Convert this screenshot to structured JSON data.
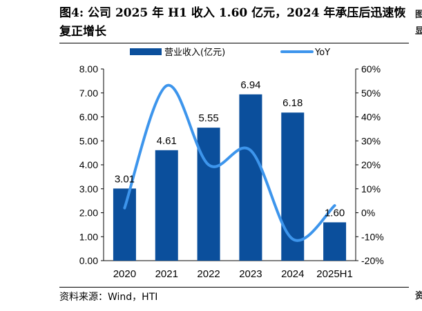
{
  "header": {
    "title": "图4: 公司 2025 年 H1 收入 1.60 亿元，2024 年承压后迅速恢复正增长"
  },
  "footer": {
    "source": "资料来源：Wind，HTI"
  },
  "side_fragments": [
    "图",
    "显",
    "资"
  ],
  "chart_data": {
    "type": "bar",
    "title": "图4: 公司 2025 年 H1 收入 1.60 亿元，2024 年承压后迅速恢复正增长",
    "categories": [
      "2020",
      "2021",
      "2022",
      "2023",
      "2024",
      "2025H1"
    ],
    "series": [
      {
        "name": "营业收入(亿元)",
        "type": "bar",
        "axis": "left",
        "values": [
          3.01,
          4.61,
          5.55,
          6.94,
          6.18,
          1.6
        ],
        "labels": [
          "3.01",
          "4.61",
          "5.55",
          "6.94",
          "6.18",
          "1.60"
        ],
        "color": "#0b4f9c"
      },
      {
        "name": "YoY",
        "type": "line",
        "axis": "right",
        "values": [
          0.02,
          0.53,
          0.2,
          0.26,
          -0.11,
          0.03
        ],
        "color": "#3d95ec"
      }
    ],
    "y_left": {
      "min": 0,
      "max": 8,
      "ticks": [
        "0.00",
        "1.00",
        "2.00",
        "3.00",
        "4.00",
        "5.00",
        "6.00",
        "7.00",
        "8.00"
      ]
    },
    "y_right": {
      "min": -0.2,
      "max": 0.6,
      "ticks": [
        "-20%",
        "-10%",
        "0%",
        "10%",
        "20%",
        "30%",
        "40%",
        "50%",
        "60%"
      ]
    },
    "grid": false,
    "legend": "top"
  }
}
